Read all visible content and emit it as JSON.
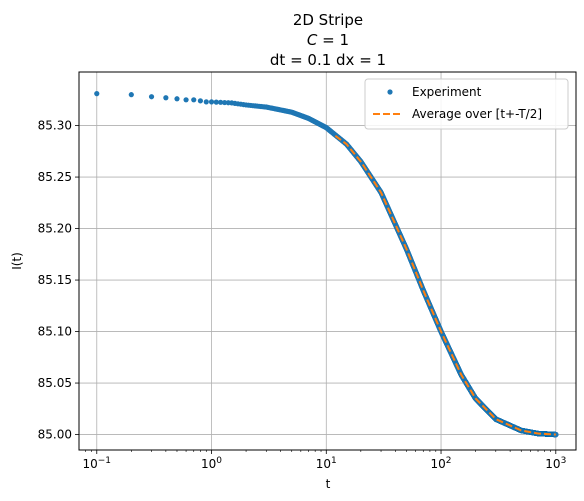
{
  "chart_data": {
    "type": "scatter",
    "title_lines": [
      "2D Stripe",
      "C = 1",
      "dt = 0.1 dx = 1"
    ],
    "title_c_symbol": "C",
    "title_c_rest": " = 1",
    "xlabel": "t",
    "ylabel": "I(t)",
    "xscale": "log",
    "xlim": [
      0.07,
      1500
    ],
    "ylim": [
      84.985,
      85.352
    ],
    "x_ticks": [
      {
        "value": 0.1,
        "base": "10",
        "exp": "−1"
      },
      {
        "value": 1,
        "base": "10",
        "exp": "0"
      },
      {
        "value": 10,
        "base": "10",
        "exp": "1"
      },
      {
        "value": 100,
        "base": "10",
        "exp": "2"
      },
      {
        "value": 1000,
        "base": "10",
        "exp": "3"
      }
    ],
    "y_ticks": [
      {
        "value": 85.0,
        "label": "85.00"
      },
      {
        "value": 85.05,
        "label": "85.05"
      },
      {
        "value": 85.1,
        "label": "85.10"
      },
      {
        "value": 85.15,
        "label": "85.15"
      },
      {
        "value": 85.2,
        "label": "85.20"
      },
      {
        "value": 85.25,
        "label": "85.25"
      },
      {
        "value": 85.3,
        "label": "85.30"
      }
    ],
    "grid": true,
    "legend_position": "top-right",
    "series": [
      {
        "name": "Experiment",
        "style": "markers",
        "color": "#1f77b4",
        "x": [
          0.1,
          0.2,
          0.3,
          0.4,
          0.5,
          0.6,
          0.7,
          0.8,
          0.9,
          1,
          1.5,
          2,
          3,
          5,
          7,
          10,
          15,
          20,
          30,
          50,
          70,
          100,
          150,
          200,
          300,
          500,
          700,
          1000
        ],
        "y": [
          85.331,
          85.33,
          85.328,
          85.327,
          85.326,
          85.325,
          85.325,
          85.324,
          85.323,
          85.323,
          85.322,
          85.32,
          85.318,
          85.313,
          85.307,
          85.298,
          85.282,
          85.265,
          85.235,
          85.18,
          85.14,
          85.1,
          85.058,
          85.035,
          85.015,
          85.004,
          85.001,
          85.0
        ]
      },
      {
        "name": "Average over [t+-T/2]",
        "style": "dashed-line",
        "color": "#ff7f0e",
        "x": [
          12,
          15,
          20,
          30,
          50,
          70,
          100,
          150,
          200,
          300,
          500,
          700,
          1000
        ],
        "y": [
          85.29,
          85.282,
          85.265,
          85.235,
          85.18,
          85.14,
          85.1,
          85.058,
          85.035,
          85.015,
          85.004,
          85.001,
          85.0
        ]
      }
    ]
  }
}
